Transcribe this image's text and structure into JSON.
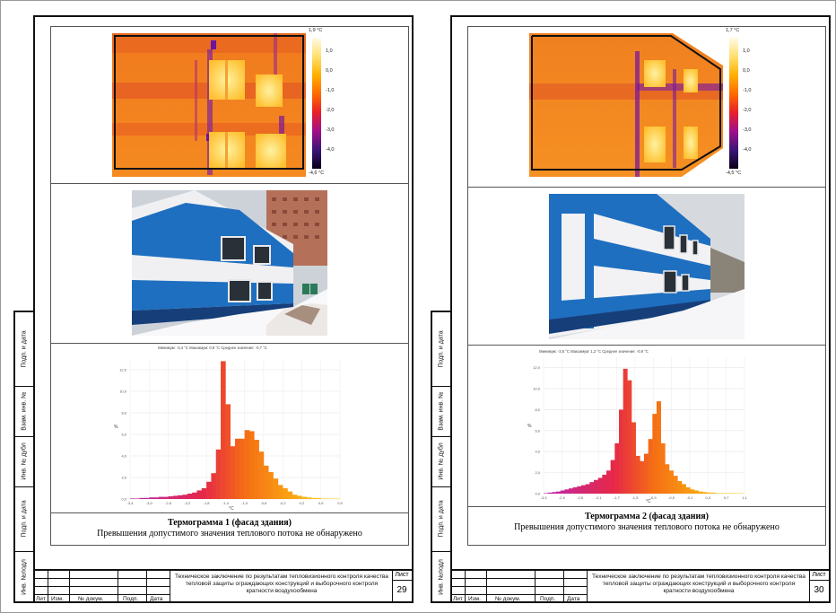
{
  "side_labels": [
    "Инв. №подл",
    "Подп. и дата",
    "Инв. № дубл",
    "Взам. инв. №",
    "Подп. и дата"
  ],
  "stamp_columns": [
    "Лит",
    "Изм.",
    "№ докум.",
    "Подп.",
    "Дата"
  ],
  "doc_title": "Техническое заключение по результатам тепловизионного контроля качества тепловой защиты ограждающих конструкций и выборочного контроля кратности воздухообмена",
  "list_label": "Лист",
  "pages": [
    {
      "page_number": "29",
      "colorbar": {
        "max": "1,9 °C",
        "min": "-4,6 °C",
        "ticks": [
          "1,0",
          "0,0",
          "-1,0",
          "-2,0",
          "-3,0",
          "-4,0"
        ]
      },
      "histogram": {
        "stats": "Минимум: -3,4 °C Максимум: 0,9 °C Среднее значение: -0,7 °C",
        "ylabel": "%",
        "xlabel": "°C",
        "yticks": [
          "12,0",
          "10,0",
          "8,0",
          "6,0",
          "4,0",
          "2,0",
          "0,0"
        ],
        "xticks": [
          "-3,4",
          "-3,0",
          "-2,6",
          "-2,2",
          "-1,8",
          "-1,4",
          "-1,0",
          "-0,6",
          "-0,2",
          "0,2",
          "0,6",
          "0,9"
        ]
      },
      "caption_title": "Термограмма 1 (фасад здания)",
      "caption_text": "Превышения допустимого значения теплового потока не обнаружено"
    },
    {
      "page_number": "30",
      "colorbar": {
        "max": "1,7 °C",
        "min": "-4,5 °C",
        "ticks": [
          "1,0",
          "0,0",
          "-1,0",
          "-2,0",
          "-3,0",
          "-4,0"
        ]
      },
      "histogram": {
        "stats": "Минимум: -3,5 °C Максимум: 1,2 °C Среднее значение: -0,9 °C",
        "ylabel": "%",
        "xlabel": "°C",
        "yticks": [
          "12,0",
          "10,0",
          "8,0",
          "6,0",
          "4,0",
          "2,0",
          "0,0"
        ],
        "xticks": [
          "-3,3",
          "-2,9",
          "-2,5",
          "-2,1",
          "-1,7",
          "-1,3",
          "-0,9",
          "-0,5",
          "-0,1",
          "0,3",
          "0,7",
          "1,1"
        ]
      },
      "caption_title": "Термограмма 2 (фасад здания)",
      "caption_text": "Превышения допустимого значения теплового потока не обнаружено"
    }
  ],
  "colors": {
    "hot": "#ffd23c",
    "mid": "#f07a1e",
    "cold": "#6a14a0",
    "wall_blue": "#1f6fc0",
    "panel_white": "#f2f2f2"
  },
  "chart_data": [
    {
      "type": "bar",
      "title": "Минимум: -3,4 °C Максимум: 0,9 °C Среднее значение: -0,7 °C",
      "xlabel": "°C",
      "ylabel": "%",
      "ylim": [
        0,
        13
      ],
      "xlim": [
        -3.4,
        0.9
      ],
      "x": [
        -3.4,
        -3.3,
        -3.2,
        -3.1,
        -3.0,
        -2.9,
        -2.8,
        -2.7,
        -2.6,
        -2.5,
        -2.4,
        -2.3,
        -2.2,
        -2.1,
        -2.0,
        -1.9,
        -1.8,
        -1.7,
        -1.6,
        -1.5,
        -1.4,
        -1.3,
        -1.2,
        -1.1,
        -1.0,
        -0.9,
        -0.8,
        -0.7,
        -0.6,
        -0.5,
        -0.4,
        -0.3,
        -0.2,
        -0.1,
        0.0,
        0.1,
        0.2,
        0.3,
        0.4,
        0.5,
        0.6,
        0.7,
        0.8,
        0.9
      ],
      "values": [
        0.05,
        0.05,
        0.1,
        0.1,
        0.15,
        0.15,
        0.2,
        0.2,
        0.25,
        0.3,
        0.35,
        0.4,
        0.5,
        0.6,
        0.8,
        1.0,
        1.6,
        2.4,
        4.6,
        12.8,
        8.8,
        4.9,
        5.6,
        5.6,
        6.4,
        6.3,
        5.5,
        4.4,
        3.1,
        2.5,
        1.9,
        1.3,
        1.0,
        0.7,
        0.4,
        0.3,
        0.2,
        0.15,
        0.1,
        0.1,
        0.05,
        0.05,
        0.05,
        0.05
      ]
    },
    {
      "type": "bar",
      "title": "Минимум: -3,5 °C Максимум: 1,2 °C Среднее значение: -0,9 °C",
      "xlabel": "°C",
      "ylabel": "%",
      "ylim": [
        0,
        13
      ],
      "xlim": [
        -3.5,
        1.2
      ],
      "x": [
        -3.5,
        -3.4,
        -3.3,
        -3.2,
        -3.1,
        -3.0,
        -2.9,
        -2.8,
        -2.7,
        -2.6,
        -2.5,
        -2.4,
        -2.3,
        -2.2,
        -2.1,
        -2.0,
        -1.9,
        -1.8,
        -1.7,
        -1.6,
        -1.5,
        -1.4,
        -1.3,
        -1.2,
        -1.1,
        -1.0,
        -0.9,
        -0.8,
        -0.7,
        -0.6,
        -0.5,
        -0.4,
        -0.3,
        -0.2,
        -0.1,
        0.0,
        0.1,
        0.2,
        0.3,
        0.4,
        0.5,
        0.6,
        0.7,
        0.8,
        0.9,
        1.0,
        1.1,
        1.2
      ],
      "values": [
        0.05,
        0.1,
        0.15,
        0.2,
        0.3,
        0.4,
        0.5,
        0.6,
        0.7,
        0.8,
        0.9,
        1.1,
        1.3,
        1.5,
        1.8,
        2.2,
        3.2,
        4.8,
        8.0,
        11.9,
        10.8,
        6.8,
        3.6,
        3.1,
        3.8,
        5.2,
        7.6,
        8.8,
        4.8,
        2.8,
        2.2,
        1.7,
        1.2,
        0.9,
        0.6,
        0.4,
        0.3,
        0.2,
        0.15,
        0.1,
        0.1,
        0.05,
        0.05,
        0.05,
        0.05,
        0.05,
        0.05,
        0.05
      ]
    }
  ]
}
